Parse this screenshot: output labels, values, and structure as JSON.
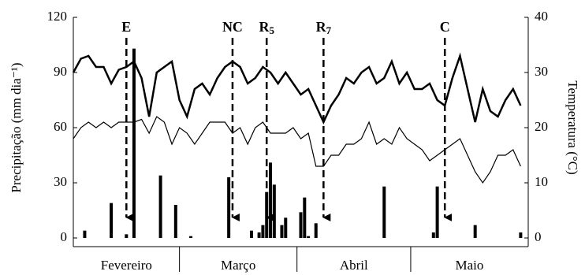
{
  "chart_data": {
    "type": "bar-line",
    "y_label": "Precipitação (mm dia⁻¹)",
    "y2_label": "Temperatura (°C)",
    "xlim": [
      0,
      120
    ],
    "xticks": [
      28,
      59,
      89
    ],
    "months": [
      "Fevereiro",
      "Março",
      "Abril",
      "Maio"
    ],
    "ylim": [
      0,
      120
    ],
    "yticks": [
      0,
      30,
      60,
      90,
      120
    ],
    "y2lim": [
      0,
      40
    ],
    "y2ticks": [
      0,
      10,
      20,
      30,
      40
    ],
    "series": [
      {
        "type": "bar",
        "color": "#000000",
        "x": [
          3,
          10,
          14,
          16,
          23,
          27,
          31,
          41,
          47,
          49,
          50,
          51,
          52,
          53,
          55,
          56,
          60,
          61,
          62,
          64,
          82,
          95,
          96,
          106,
          118
        ],
        "values": [
          4,
          19,
          2,
          103,
          34,
          18,
          1,
          33,
          4,
          3,
          7,
          25,
          41,
          29,
          7,
          11,
          14,
          22,
          1,
          8,
          28,
          3,
          28,
          7,
          3
        ]
      },
      {
        "type": "line",
        "axis": "y2",
        "color": "#000000",
        "x": [
          0,
          2,
          4,
          6,
          8,
          10,
          12,
          14,
          16,
          18,
          20,
          22,
          24,
          26,
          28,
          30,
          32,
          34,
          36,
          38,
          40,
          42,
          44,
          46,
          48,
          50,
          52,
          54,
          56,
          58,
          60,
          62,
          64,
          66,
          68,
          70,
          72,
          74,
          76,
          78,
          80,
          82,
          84,
          86,
          88,
          90,
          92,
          94,
          96,
          98,
          100,
          102,
          104,
          106,
          108,
          110,
          112,
          114,
          116,
          118
        ],
        "values": [
          30,
          32.5,
          33,
          31,
          31,
          28,
          30.5,
          31,
          32,
          29,
          22,
          30,
          31,
          32,
          25,
          22,
          27,
          28,
          26,
          29,
          31,
          32,
          31,
          28,
          29,
          31,
          30,
          28,
          30,
          28,
          26,
          27,
          24,
          21,
          24,
          26,
          29,
          28,
          30,
          31,
          28,
          29,
          32,
          28,
          30,
          27,
          27,
          28,
          25,
          24,
          29,
          33,
          27,
          21,
          27,
          23,
          22,
          25,
          27,
          24
        ]
      },
      {
        "type": "line",
        "axis": "y2",
        "color": "#000000",
        "x": [
          0,
          2,
          4,
          6,
          8,
          10,
          12,
          14,
          16,
          18,
          20,
          22,
          24,
          26,
          28,
          30,
          32,
          34,
          36,
          38,
          40,
          42,
          44,
          46,
          48,
          50,
          52,
          54,
          56,
          58,
          60,
          62,
          64,
          66,
          68,
          70,
          72,
          74,
          76,
          78,
          80,
          82,
          84,
          86,
          88,
          90,
          92,
          94,
          96,
          98,
          100,
          102,
          104,
          106,
          108,
          110,
          112,
          114,
          116,
          118
        ],
        "values": [
          18,
          20,
          21,
          20,
          21,
          20,
          21,
          21,
          21,
          21.5,
          19,
          22,
          21,
          17,
          20,
          19,
          17,
          19,
          21,
          21,
          21,
          19,
          20,
          17,
          20,
          21,
          19,
          19,
          19,
          20,
          18,
          19,
          13,
          13,
          15,
          15,
          17,
          17,
          18,
          21,
          17,
          18,
          17,
          20,
          18,
          17,
          16,
          14,
          15,
          16,
          17,
          18,
          15,
          12,
          10,
          12,
          15,
          15,
          16,
          13
        ]
      }
    ],
    "annotations": [
      {
        "label": "E",
        "x": 14
      },
      {
        "label": "NC",
        "x": 42
      },
      {
        "label": "R",
        "sub": "5",
        "x": 51
      },
      {
        "label": "R",
        "sub": "7",
        "x": 66
      },
      {
        "label": "C",
        "x": 98
      }
    ]
  }
}
